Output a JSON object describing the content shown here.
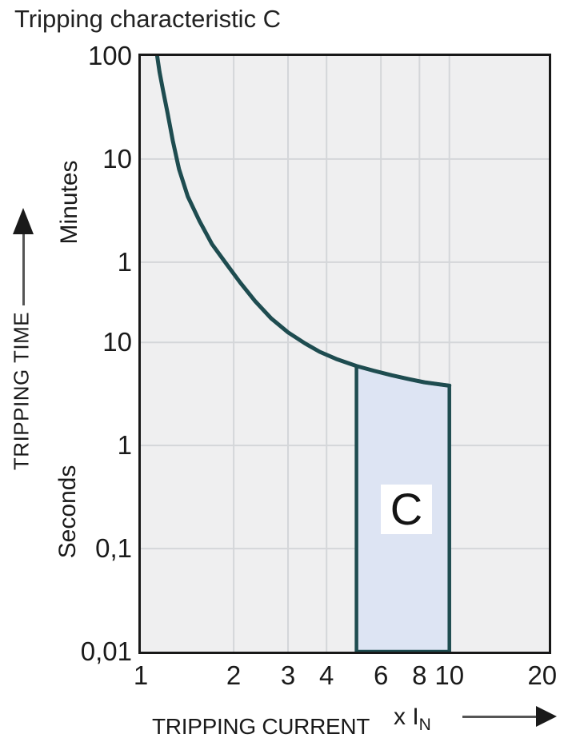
{
  "chart_data": {
    "type": "line",
    "title": "Tripping characteristic C",
    "x_axis": {
      "label": "TRIPPING CURRENT",
      "multiplier_label": {
        "base": "x I",
        "sub": "N"
      },
      "scale": "log",
      "min": 1,
      "max": 21,
      "ticks": [
        {
          "value": 1,
          "label": "1"
        },
        {
          "value": 2,
          "label": "2"
        },
        {
          "value": 3,
          "label": "3"
        },
        {
          "value": 4,
          "label": "4"
        },
        {
          "value": 6,
          "label": "6"
        },
        {
          "value": 8,
          "label": "8"
        },
        {
          "value": 10,
          "label": "10"
        },
        {
          "value": 20,
          "label": "20"
        }
      ]
    },
    "y_axis": {
      "label": "TRIPPING TIME",
      "scale": "log",
      "min_seconds": 0.01,
      "max_seconds": 6000,
      "unit_groups": [
        {
          "unit": "Minutes",
          "ticks": [
            {
              "seconds": 6000,
              "label": "100"
            },
            {
              "seconds": 600,
              "label": "10"
            },
            {
              "seconds": 60,
              "label": "1"
            }
          ]
        },
        {
          "unit": "Seconds",
          "ticks": [
            {
              "seconds": 10,
              "label": "10"
            },
            {
              "seconds": 1,
              "label": "1"
            },
            {
              "seconds": 0.1,
              "label": "0,1"
            },
            {
              "seconds": 0.01,
              "label": "0,01"
            }
          ]
        }
      ]
    },
    "grid": {
      "x_lines": [
        2,
        3,
        4,
        6,
        8,
        10
      ],
      "y_lines_seconds": [
        600,
        60,
        10,
        1,
        0.1
      ],
      "color": "#d4d6d9"
    },
    "series": [
      {
        "name": "tripping-curve",
        "color": "#1e4c50",
        "width": 5,
        "points": [
          [
            1.13,
            6000
          ],
          [
            1.15,
            4200
          ],
          [
            1.18,
            2800
          ],
          [
            1.22,
            1700
          ],
          [
            1.27,
            900
          ],
          [
            1.33,
            480
          ],
          [
            1.42,
            260
          ],
          [
            1.55,
            150
          ],
          [
            1.7,
            90
          ],
          [
            1.9,
            57
          ],
          [
            2.1,
            38
          ],
          [
            2.35,
            25
          ],
          [
            2.65,
            17
          ],
          [
            3.0,
            12.5
          ],
          [
            3.4,
            9.8
          ],
          [
            3.8,
            8.1
          ],
          [
            4.3,
            6.9
          ],
          [
            5.0,
            5.9
          ],
          [
            5.7,
            5.3
          ],
          [
            6.5,
            4.8
          ],
          [
            7.4,
            4.4
          ],
          [
            8.3,
            4.1
          ],
          [
            9.2,
            3.93
          ],
          [
            10.0,
            3.8
          ]
        ]
      }
    ],
    "region": {
      "label": "C",
      "x_range": [
        5,
        10
      ],
      "bottom_seconds": 0.01,
      "top_seconds_at_x5": 5.9,
      "top_seconds_at_x10": 3.8,
      "fill": "#dde4f3",
      "stroke": "#1e4c50",
      "stroke_width": 4.5
    },
    "plot": {
      "background": "#efeff0",
      "frame_color": "#181818"
    }
  }
}
